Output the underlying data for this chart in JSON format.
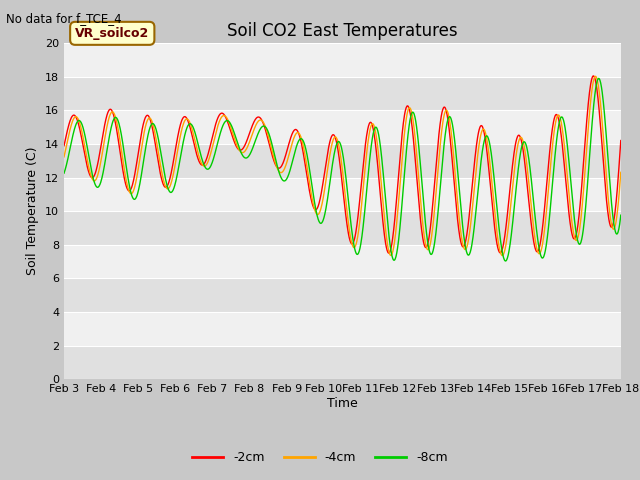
{
  "title": "Soil CO2 East Temperatures",
  "no_data_text": "No data for f_TCE_4",
  "ylabel": "Soil Temperature (C)",
  "xlabel": "Time",
  "legend_label": "VR_soilco2",
  "ylim": [
    0,
    20
  ],
  "bg_color": "#c8c8c8",
  "plot_bg_color": "#e8e8e8",
  "band_colors": [
    "#ffffff",
    "#e8e8e8"
  ],
  "x_tick_labels": [
    "Feb 3",
    "Feb 4",
    "Feb 5",
    "Feb 6",
    "Feb 7",
    "Feb 8",
    "Feb 9",
    "Feb 10",
    "Feb 11",
    "Feb 12",
    "Feb 13",
    "Feb 14",
    "Feb 15",
    "Feb 16",
    "Feb 17",
    "Feb 18"
  ],
  "series_order": [
    "-2cm",
    "-4cm",
    "-8cm"
  ],
  "colors": {
    "-2cm": "#ff0000",
    "-4cm": "#ffa500",
    "-8cm": "#00cc00"
  }
}
